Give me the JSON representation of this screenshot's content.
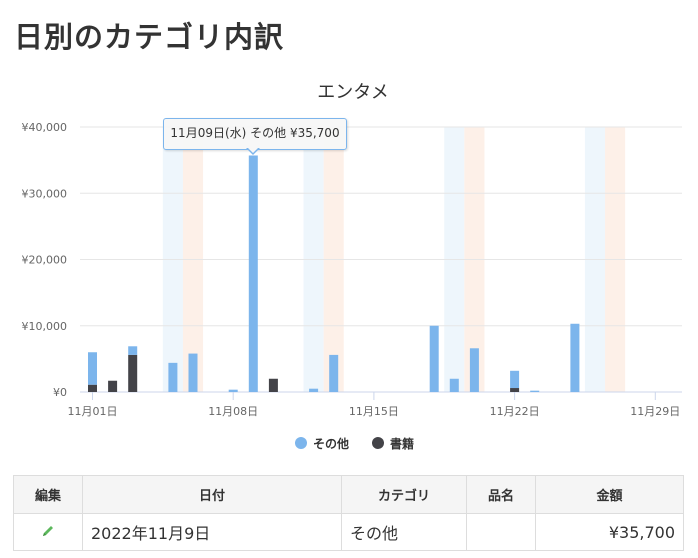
{
  "page": {
    "title": "日別のカテゴリ内訳"
  },
  "chart_data": {
    "type": "bar",
    "stacked": true,
    "title": "エンタメ",
    "x_ticks": [
      "11月01日",
      "11月08日",
      "11月15日",
      "11月22日",
      "11月29日"
    ],
    "y_ticks": [
      "¥0",
      "¥10,000",
      "¥20,000",
      "¥30,000",
      "¥40,000"
    ],
    "ylim": [
      0,
      40000
    ],
    "x_range": [
      "2022-11-01",
      "2022-11-30"
    ],
    "weekend_shading": {
      "saturday_color": "#eef6fc",
      "sunday_color": "#fdf0e8",
      "saturdays": [
        "2022-11-05",
        "2022-11-12",
        "2022-11-19",
        "2022-11-26"
      ],
      "sundays": [
        "2022-11-06",
        "2022-11-13",
        "2022-11-20",
        "2022-11-27"
      ]
    },
    "series": [
      {
        "name": "その他",
        "color": "#7cb5ec",
        "data": [
          [
            "2022-11-01",
            4900
          ],
          [
            "2022-11-03",
            1300
          ],
          [
            "2022-11-05",
            4400
          ],
          [
            "2022-11-06",
            5800
          ],
          [
            "2022-11-08",
            350
          ],
          [
            "2022-11-09",
            35700
          ],
          [
            "2022-11-12",
            500
          ],
          [
            "2022-11-13",
            5600
          ],
          [
            "2022-11-18",
            10000
          ],
          [
            "2022-11-19",
            2000
          ],
          [
            "2022-11-20",
            6600
          ],
          [
            "2022-11-22",
            2600
          ],
          [
            "2022-11-23",
            200
          ],
          [
            "2022-11-25",
            10300
          ]
        ]
      },
      {
        "name": "書籍",
        "color": "#434348",
        "data": [
          [
            "2022-11-01",
            1100
          ],
          [
            "2022-11-02",
            1700
          ],
          [
            "2022-11-03",
            5600
          ],
          [
            "2022-11-10",
            2000
          ],
          [
            "2022-11-22",
            600
          ]
        ]
      }
    ],
    "legend": {
      "position": "bottom-center",
      "items": [
        "その他",
        "書籍"
      ]
    },
    "tooltip": {
      "text": "11月09日(水) その他 ¥35,700"
    },
    "grid": true
  },
  "table": {
    "headers": [
      "編集",
      "日付",
      "カテゴリ",
      "品名",
      "金額"
    ],
    "rows": [
      {
        "edit_icon": "pencil-icon",
        "date": "2022年11月9日",
        "category": "その他",
        "item": "",
        "amount": "¥35,700"
      }
    ]
  }
}
